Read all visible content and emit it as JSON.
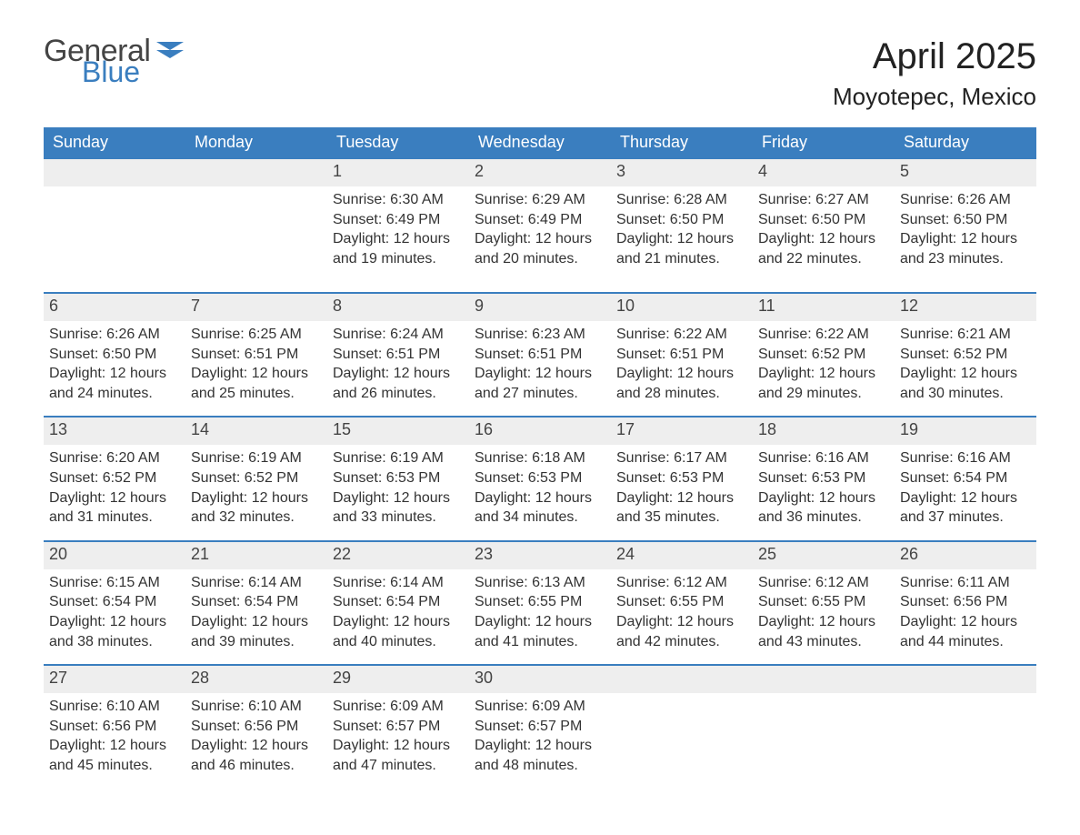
{
  "brand": {
    "line1": "General",
    "line2": "Blue"
  },
  "title": {
    "month": "April 2025",
    "location": "Moyotepec, Mexico"
  },
  "colors": {
    "header_bg": "#3a7ebf",
    "header_text": "#ffffff",
    "daynum_bg": "#eeeeee",
    "rule": "#3a7ebf",
    "body_text": "#333333"
  },
  "days_of_week": [
    "Sunday",
    "Monday",
    "Tuesday",
    "Wednesday",
    "Thursday",
    "Friday",
    "Saturday"
  ],
  "weeks": [
    [
      {
        "n": "",
        "sunrise": "",
        "sunset": "",
        "day_h": "",
        "day_m": ""
      },
      {
        "n": "",
        "sunrise": "",
        "sunset": "",
        "day_h": "",
        "day_m": ""
      },
      {
        "n": "1",
        "sunrise": "6:30 AM",
        "sunset": "6:49 PM",
        "day_h": "12",
        "day_m": "19"
      },
      {
        "n": "2",
        "sunrise": "6:29 AM",
        "sunset": "6:49 PM",
        "day_h": "12",
        "day_m": "20"
      },
      {
        "n": "3",
        "sunrise": "6:28 AM",
        "sunset": "6:50 PM",
        "day_h": "12",
        "day_m": "21"
      },
      {
        "n": "4",
        "sunrise": "6:27 AM",
        "sunset": "6:50 PM",
        "day_h": "12",
        "day_m": "22"
      },
      {
        "n": "5",
        "sunrise": "6:26 AM",
        "sunset": "6:50 PM",
        "day_h": "12",
        "day_m": "23"
      }
    ],
    [
      {
        "n": "6",
        "sunrise": "6:26 AM",
        "sunset": "6:50 PM",
        "day_h": "12",
        "day_m": "24"
      },
      {
        "n": "7",
        "sunrise": "6:25 AM",
        "sunset": "6:51 PM",
        "day_h": "12",
        "day_m": "25"
      },
      {
        "n": "8",
        "sunrise": "6:24 AM",
        "sunset": "6:51 PM",
        "day_h": "12",
        "day_m": "26"
      },
      {
        "n": "9",
        "sunrise": "6:23 AM",
        "sunset": "6:51 PM",
        "day_h": "12",
        "day_m": "27"
      },
      {
        "n": "10",
        "sunrise": "6:22 AM",
        "sunset": "6:51 PM",
        "day_h": "12",
        "day_m": "28"
      },
      {
        "n": "11",
        "sunrise": "6:22 AM",
        "sunset": "6:52 PM",
        "day_h": "12",
        "day_m": "29"
      },
      {
        "n": "12",
        "sunrise": "6:21 AM",
        "sunset": "6:52 PM",
        "day_h": "12",
        "day_m": "30"
      }
    ],
    [
      {
        "n": "13",
        "sunrise": "6:20 AM",
        "sunset": "6:52 PM",
        "day_h": "12",
        "day_m": "31"
      },
      {
        "n": "14",
        "sunrise": "6:19 AM",
        "sunset": "6:52 PM",
        "day_h": "12",
        "day_m": "32"
      },
      {
        "n": "15",
        "sunrise": "6:19 AM",
        "sunset": "6:53 PM",
        "day_h": "12",
        "day_m": "33"
      },
      {
        "n": "16",
        "sunrise": "6:18 AM",
        "sunset": "6:53 PM",
        "day_h": "12",
        "day_m": "34"
      },
      {
        "n": "17",
        "sunrise": "6:17 AM",
        "sunset": "6:53 PM",
        "day_h": "12",
        "day_m": "35"
      },
      {
        "n": "18",
        "sunrise": "6:16 AM",
        "sunset": "6:53 PM",
        "day_h": "12",
        "day_m": "36"
      },
      {
        "n": "19",
        "sunrise": "6:16 AM",
        "sunset": "6:54 PM",
        "day_h": "12",
        "day_m": "37"
      }
    ],
    [
      {
        "n": "20",
        "sunrise": "6:15 AM",
        "sunset": "6:54 PM",
        "day_h": "12",
        "day_m": "38"
      },
      {
        "n": "21",
        "sunrise": "6:14 AM",
        "sunset": "6:54 PM",
        "day_h": "12",
        "day_m": "39"
      },
      {
        "n": "22",
        "sunrise": "6:14 AM",
        "sunset": "6:54 PM",
        "day_h": "12",
        "day_m": "40"
      },
      {
        "n": "23",
        "sunrise": "6:13 AM",
        "sunset": "6:55 PM",
        "day_h": "12",
        "day_m": "41"
      },
      {
        "n": "24",
        "sunrise": "6:12 AM",
        "sunset": "6:55 PM",
        "day_h": "12",
        "day_m": "42"
      },
      {
        "n": "25",
        "sunrise": "6:12 AM",
        "sunset": "6:55 PM",
        "day_h": "12",
        "day_m": "43"
      },
      {
        "n": "26",
        "sunrise": "6:11 AM",
        "sunset": "6:56 PM",
        "day_h": "12",
        "day_m": "44"
      }
    ],
    [
      {
        "n": "27",
        "sunrise": "6:10 AM",
        "sunset": "6:56 PM",
        "day_h": "12",
        "day_m": "45"
      },
      {
        "n": "28",
        "sunrise": "6:10 AM",
        "sunset": "6:56 PM",
        "day_h": "12",
        "day_m": "46"
      },
      {
        "n": "29",
        "sunrise": "6:09 AM",
        "sunset": "6:57 PM",
        "day_h": "12",
        "day_m": "47"
      },
      {
        "n": "30",
        "sunrise": "6:09 AM",
        "sunset": "6:57 PM",
        "day_h": "12",
        "day_m": "48"
      },
      {
        "n": "",
        "sunrise": "",
        "sunset": "",
        "day_h": "",
        "day_m": ""
      },
      {
        "n": "",
        "sunrise": "",
        "sunset": "",
        "day_h": "",
        "day_m": ""
      },
      {
        "n": "",
        "sunrise": "",
        "sunset": "",
        "day_h": "",
        "day_m": ""
      }
    ]
  ],
  "labels": {
    "sunrise": "Sunrise:",
    "sunset": "Sunset:",
    "daylight": "Daylight:",
    "hours": "hours",
    "and": "and",
    "minutes": "minutes."
  }
}
